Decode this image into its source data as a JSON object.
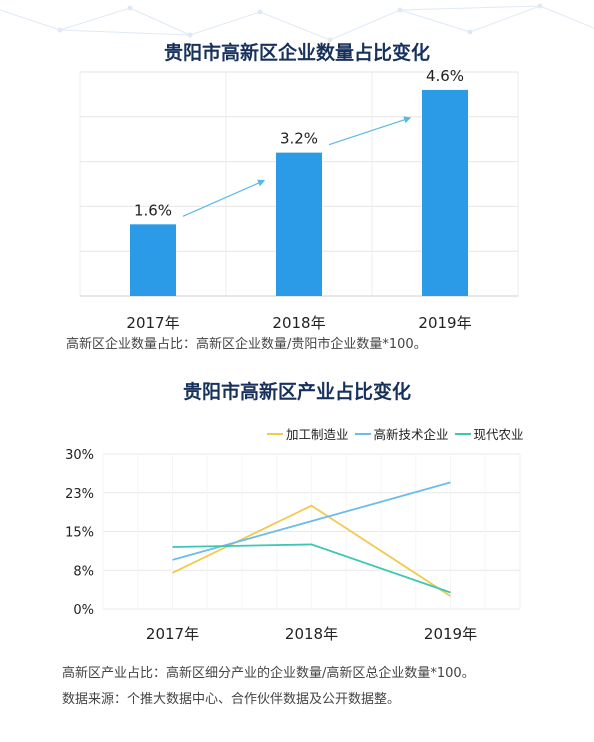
{
  "chart_data": [
    {
      "type": "bar",
      "title": "贵阳市高新区企业数量占比变化",
      "categories": [
        "2017年",
        "2018年",
        "2019年"
      ],
      "values": [
        1.6,
        3.2,
        4.6
      ],
      "data_labels": [
        "1.6%",
        "3.2%",
        "4.6%"
      ],
      "ylim": [
        0,
        5
      ],
      "grid": true,
      "color": "#2b9be8",
      "note": "高新区企业数量占比：高新区企业数量/贵阳市企业数量*100。"
    },
    {
      "type": "line",
      "title": "贵阳市高新区产业占比变化",
      "categories": [
        "2017年",
        "2018年",
        "2019年"
      ],
      "yticks": [
        "0%",
        "8%",
        "15%",
        "23%",
        "30%"
      ],
      "ylim": [
        0,
        30
      ],
      "grid": true,
      "legend_position": "top-right",
      "series": [
        {
          "name": "加工制造业",
          "values": [
            7,
            20,
            2.5
          ],
          "color": "#f3c94e"
        },
        {
          "name": "高新技术企业",
          "values": [
            9.5,
            17,
            24.5
          ],
          "color": "#6cbcea"
        },
        {
          "name": "现代农业",
          "values": [
            12,
            12.5,
            3.2
          ],
          "color": "#3cc6b4"
        }
      ],
      "note": "高新区产业占比：高新区细分产业的企业数量/高新区总企业数量*100。"
    }
  ],
  "source_note": "数据来源：个推大数据中心、合作伙伴数据及公开数据整。"
}
